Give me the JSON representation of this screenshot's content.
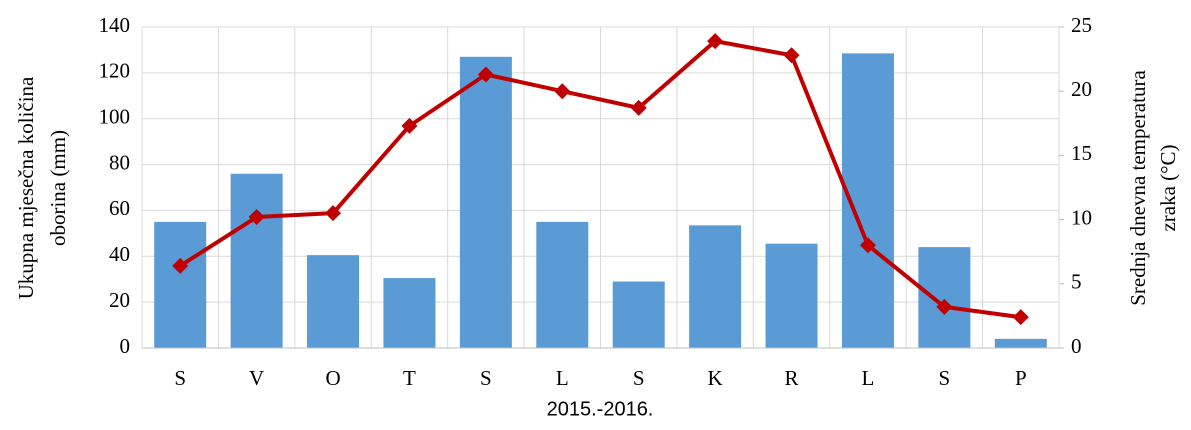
{
  "chart_data": {
    "type": "bar",
    "xlabel": "2015.-2016.",
    "ylabel": [
      "Ukupna mjesečna količina",
      "oborina (mm)"
    ],
    "y2label": [
      "Srednja dnevna temperatura",
      "zraka (°C)"
    ],
    "categories": [
      "S",
      "V",
      "O",
      "T",
      "S",
      "L",
      "S",
      "K",
      "R",
      "L",
      "S",
      "P"
    ],
    "series": [
      {
        "type": "bar",
        "color": "#5b9bd5",
        "values": [
          55,
          76,
          40.5,
          30.5,
          127,
          55,
          29,
          53.5,
          45.5,
          128.5,
          44,
          4
        ]
      },
      {
        "type": "line",
        "axis": "y2",
        "color": "#c00000",
        "values": [
          6.4,
          10.2,
          10.5,
          17.3,
          21.3,
          20.0,
          18.7,
          23.9,
          22.8,
          8.0,
          3.2,
          2.4
        ]
      }
    ],
    "ylim": [
      0,
      140
    ],
    "yticks": [
      0,
      20,
      40,
      60,
      80,
      100,
      120,
      140
    ],
    "y2lim": [
      0,
      25
    ],
    "y2ticks": [
      0,
      5,
      10,
      15,
      20,
      25
    ],
    "grid": true
  }
}
